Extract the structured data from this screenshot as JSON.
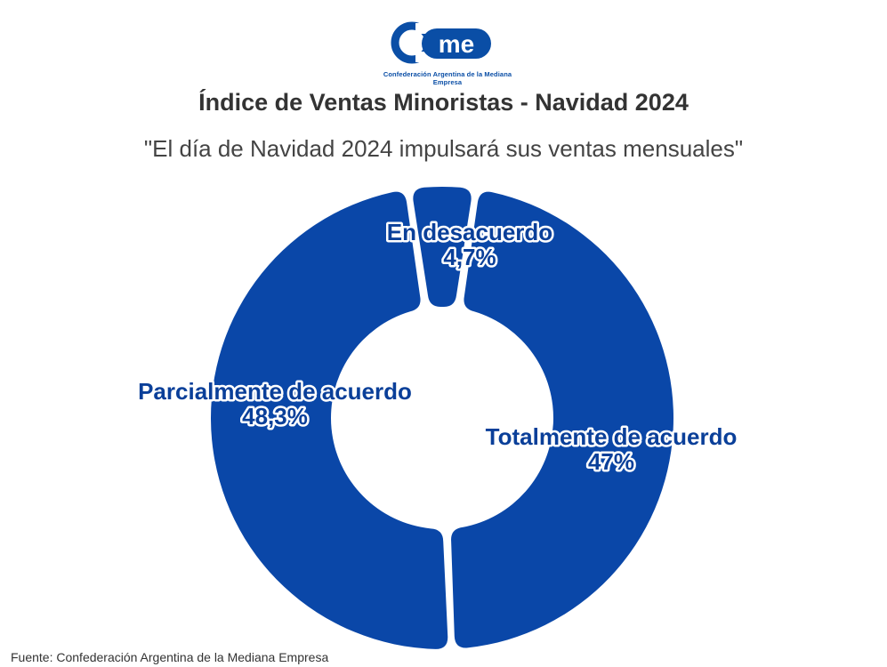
{
  "logo": {
    "text": "Confederación Argentina de la Mediana Empresa",
    "brand_color": "#0a4ea6"
  },
  "title": "Índice de Ventas Minoristas - Navidad 2024",
  "subtitle": "\"El día de Navidad 2024 impulsará sus ventas mensuales\"",
  "source": "Fuente: Confederación Argentina de la Mediana Empresa",
  "chart_data": {
    "type": "pie",
    "variant": "donut",
    "title": "Índice de Ventas Minoristas - Navidad 2024",
    "subtitle": "\"El día de Navidad 2024 impulsará sus ventas mensuales\"",
    "slices": [
      {
        "label": "Totalmente de acuerdo",
        "value": 47,
        "value_label": "47%",
        "color": "#0a47a8"
      },
      {
        "label": "Parcialmente de acuerdo",
        "value": 48.3,
        "value_label": "48,3%",
        "color": "#0a47a8"
      },
      {
        "label": "En desacuerdo",
        "value": 4.7,
        "value_label": "4,7%",
        "color": "#0a47a8"
      }
    ],
    "legend": "none"
  }
}
